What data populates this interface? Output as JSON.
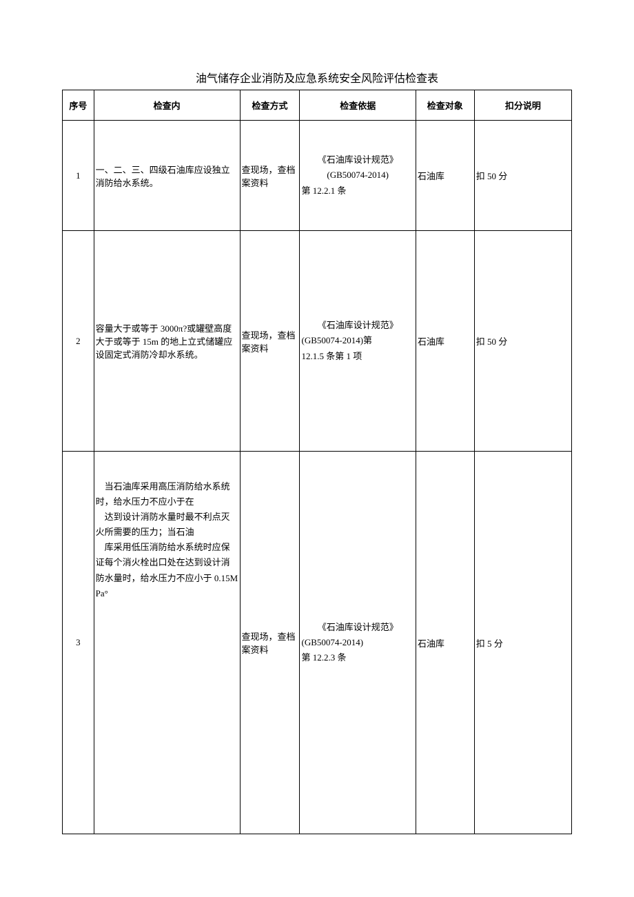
{
  "title": "油气储存企业消防及应急系统安全风险评估检查表",
  "columns": {
    "seq": "序号",
    "content": "检查内",
    "method": "检查方式",
    "basis": "检查依据",
    "object": "检查对象",
    "deduct": "扣分说明"
  },
  "rows": [
    {
      "seq": "1",
      "content": "一、二、三、四级石油库应设独立消防给水系统。",
      "method": "查现场，查档案资料",
      "basis_l1": "《石油库设计规范》",
      "basis_l2": "(GB50074-2014)",
      "basis_l3": "第 12.2.1 条",
      "object": "石油库",
      "deduct": "扣 50 分"
    },
    {
      "seq": "2",
      "content": "容量大于或等于 3000π?或罐壁高度大于或等于 15m 的地上立式储罐应设固定式消防冷却水系统。",
      "method": "查现场，查档案资料",
      "basis_l1": "《石油库设计规范》",
      "basis_l2": "(GB50074-2014)第",
      "basis_l3": "12.1.5 条第 1 项",
      "object": "石油库",
      "deduct": "扣 50 分"
    },
    {
      "seq": "3",
      "content_p1": "当石油库采用高压消防给水系统时，给水压力不应小于在",
      "content_p2": "达到设计消防水量时最不利点灭火所需要的压力；当石油",
      "content_p3": "库采用低压消防给水系统时应保证每个消火栓出口处在达到设计消防水量时，给水压力不应小于 0.15MPa°",
      "method": "查现场，查档案资料",
      "basis_l1": "《石油库设计规范》",
      "basis_l2": "(GB50074-2014)",
      "basis_l3": "第 12.2.3 条",
      "object": "石油库",
      "deduct": "扣 5 分"
    }
  ],
  "style": {
    "page_bg": "#ffffff",
    "text_color": "#000000",
    "border_color": "#000000",
    "title_fontsize": 16,
    "cell_fontsize": 13,
    "font_family": "SimSun"
  }
}
